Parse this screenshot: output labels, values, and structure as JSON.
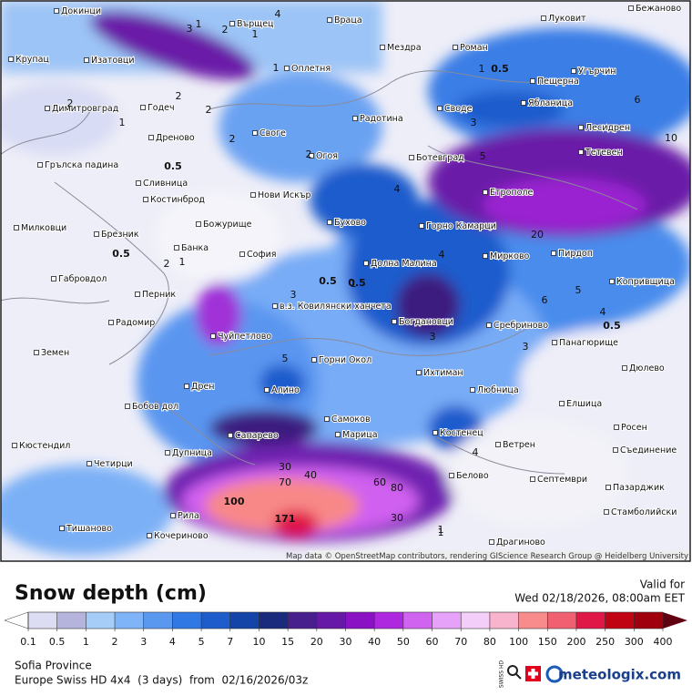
{
  "map": {
    "towns": [
      "Докинци",
      "Върщец",
      "Враца",
      "Луковит",
      "Бежаново",
      "Крупац",
      "Изатовци",
      "Оплетня",
      "Мездра",
      "Роман",
      "Угърчин",
      "Пещерна",
      "Ябланица",
      "Димитровград",
      "Годеч",
      "Радотина",
      "Своде",
      "Лесидрен",
      "Дреново",
      "Своге",
      "Огоя",
      "Ботевград",
      "Тетевен",
      "Грълска падина",
      "Сливница",
      "Нови Искър",
      "Етрополе",
      "Костинброд",
      "Божурище",
      "Бухово",
      "Горно Камарци",
      "Милковци",
      "Брезник",
      "Банка",
      "София",
      "Мирково",
      "Пирдоп",
      "Габровдол",
      "Долна Малина",
      "Копривщица",
      "Перник",
      "в.з. Ковилянски ханчета",
      "Радомир",
      "Богдановци",
      "Сребриново",
      "Чуйпетлово",
      "Панагюрище",
      "Земен",
      "Горни Окол",
      "Дюлево",
      "Ихтиман",
      "Дрен",
      "Алино",
      "Любница",
      "Елшица",
      "Бобов дол",
      "Самоков",
      "Росен",
      "Кюстендил",
      "Сапарево",
      "Марица",
      "Костенец",
      "Ветрен",
      "Съединение",
      "Дупница",
      "Четирци",
      "Белово",
      "Септември",
      "Пазарджик",
      "Рила",
      "Стамболийски",
      "Тишаново",
      "Кочериново",
      "Драгиново"
    ],
    "contour_labels": [
      "1",
      "2",
      "1",
      "3",
      "2",
      "4",
      "1",
      "2",
      "0.5",
      "2",
      "1",
      "3",
      "2",
      "0.5",
      "1",
      "0.5",
      "2",
      "3",
      "4",
      "5",
      "4",
      "5",
      "6",
      "10",
      "20",
      "4",
      "5",
      "0.5",
      "3",
      "6",
      "1",
      "0.5",
      "0.5",
      "1",
      "2",
      "3",
      "4",
      "1",
      "30",
      "40",
      "60",
      "80",
      "70",
      "100",
      "171",
      "30",
      "1"
    ],
    "attribution": "Map data © OpenStreetMap contributors, rendering GIScience Research Group @ Heidelberg University"
  },
  "legend": {
    "title": "Snow depth (cm)",
    "valid_label": "Valid for",
    "valid_time": "Wed 02/18/2026, 08:00am EET",
    "ticks": [
      0.1,
      0.5,
      1,
      2,
      3,
      4,
      5,
      7,
      10,
      15,
      20,
      30,
      40,
      50,
      60,
      70,
      80,
      100,
      150,
      200,
      250,
      300,
      400
    ],
    "colors": [
      "#dcdcf2",
      "#b4b4dc",
      "#a6ccf8",
      "#80b4f8",
      "#5a98f0",
      "#3078e4",
      "#1e5ccc",
      "#1444a8",
      "#1a2a7c",
      "#48208e",
      "#6618a6",
      "#8a12c4",
      "#ae28e0",
      "#d064f0",
      "#e6a2f8",
      "#f2cef8",
      "#f8b4cc",
      "#f88c8c",
      "#f06070",
      "#e01848",
      "#c00414",
      "#a0000c",
      "#600010"
    ]
  },
  "footer": {
    "region": "Sofia Province",
    "model": "Europe Swiss HD 4x4  (3 days)  from  02/16/2026/03z",
    "badge": "SWISS HD",
    "brand": "meteologix.com"
  }
}
